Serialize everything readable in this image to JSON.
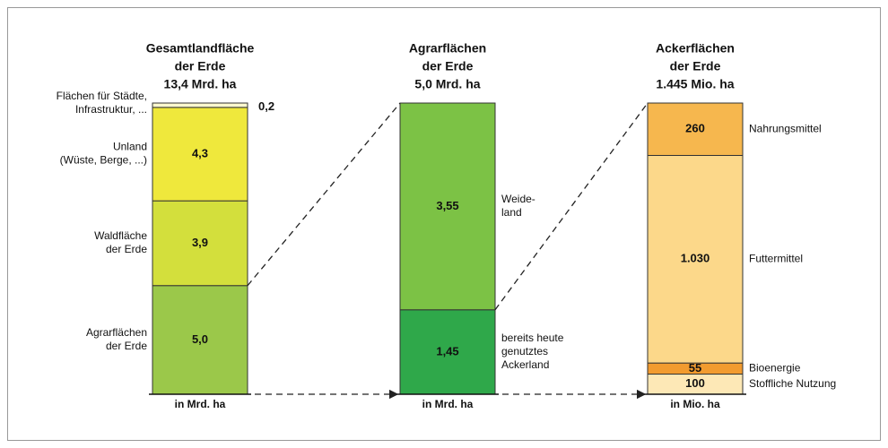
{
  "chart_data": [
    {
      "type": "stacked_bar",
      "title": [
        "Gesamtlandfläche",
        "der Erde",
        "13,4 Mrd. ha"
      ],
      "x_label": "in Mrd. ha",
      "label_side": "left",
      "series": [
        {
          "name": [
            "Agrarflächen",
            "der Erde"
          ],
          "color": "#9bc84a",
          "values": [
            5.0
          ],
          "value_labels": [
            "5,0"
          ]
        },
        {
          "name": [
            "Waldfläche",
            "der Erde"
          ],
          "color": "#d3df3c",
          "values": [
            3.9
          ],
          "value_labels": [
            "3,9"
          ]
        },
        {
          "name": [
            "Unland",
            "(Wüste, Berge, ...)"
          ],
          "color": "#efe83c",
          "values": [
            4.3
          ],
          "value_labels": [
            "4,3"
          ]
        },
        {
          "name": [
            "Flächen für Städte,",
            "Infrastruktur, ..."
          ],
          "color": "#fdf9cf",
          "values": [
            0.2
          ],
          "value_labels": [
            "0,2"
          ]
        }
      ]
    },
    {
      "type": "stacked_bar",
      "title": [
        "Agrarflächen",
        "der Erde",
        "5,0 Mrd. ha"
      ],
      "x_label": "in Mrd. ha",
      "label_side": "right",
      "series": [
        {
          "name": [
            "bereits heute",
            "genutztes",
            "Ackerland"
          ],
          "color": "#2fa84a",
          "values": [
            1.45
          ],
          "value_labels": [
            "1,45"
          ]
        },
        {
          "name": [
            "Weide-",
            "land"
          ],
          "color": "#7cc245",
          "values": [
            3.55
          ],
          "value_labels": [
            "3,55"
          ]
        }
      ]
    },
    {
      "type": "stacked_bar",
      "title": [
        "Ackerflächen",
        "der Erde",
        "1.445 Mio. ha"
      ],
      "x_label": "in Mio. ha",
      "label_side": "right",
      "series": [
        {
          "name": [
            "Stoffliche Nutzung"
          ],
          "color": "#fde8b6",
          "values": [
            100
          ]
        },
        {
          "name": [
            "Bioenergie"
          ],
          "color": "#f29b2f",
          "values": [
            55
          ]
        },
        {
          "name": [
            "Futtermittel"
          ],
          "color": "#fcd88a",
          "values": [
            1030
          ],
          "value_labels": [
            "1.030"
          ]
        },
        {
          "name": [
            "Nahrungsmittel"
          ],
          "color": "#f6b74e",
          "values": [
            260
          ]
        }
      ]
    }
  ]
}
